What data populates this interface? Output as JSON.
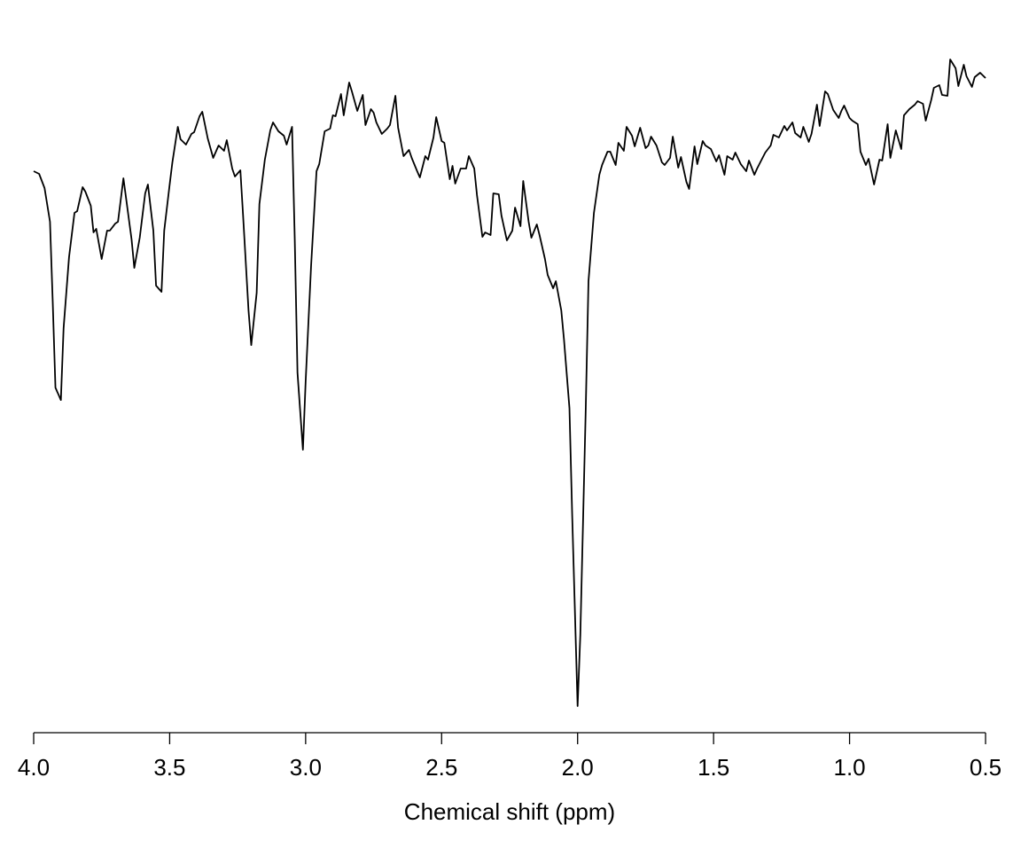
{
  "chart_data": {
    "type": "line",
    "xlabel": "Chemical shift (ppm)",
    "color": "#000000",
    "xlim": [
      4.0,
      0.5
    ],
    "ylim": [
      0,
      790
    ],
    "xticks": [
      {
        "value": 4,
        "label": "4.0"
      },
      3.5,
      {
        "value": 3,
        "label": "3.0"
      },
      2.5,
      {
        "value": 2,
        "label": "2.0"
      },
      1.5,
      {
        "value": 1,
        "label": "1.0"
      },
      0.5
    ],
    "x": [
      4.0,
      3.98,
      3.96,
      3.94,
      3.93,
      3.92,
      3.9,
      3.89,
      3.87,
      3.85,
      3.84,
      3.82,
      3.81,
      3.79,
      3.78,
      3.77,
      3.75,
      3.73,
      3.72,
      3.7,
      3.69,
      3.67,
      3.66,
      3.64,
      3.63,
      3.61,
      3.59,
      3.58,
      3.56,
      3.55,
      3.53,
      3.52,
      3.5,
      3.49,
      3.47,
      3.46,
      3.44,
      3.42,
      3.41,
      3.39,
      3.38,
      3.36,
      3.34,
      3.32,
      3.3,
      3.29,
      3.27,
      3.26,
      3.24,
      3.23,
      3.21,
      3.2,
      3.18,
      3.17,
      3.15,
      3.13,
      3.12,
      3.1,
      3.08,
      3.07,
      3.05,
      3.04,
      3.03,
      3.01,
      3.0,
      2.98,
      2.96,
      2.95,
      2.93,
      2.91,
      2.9,
      2.89,
      2.87,
      2.86,
      2.84,
      2.83,
      2.81,
      2.79,
      2.78,
      2.76,
      2.75,
      2.74,
      2.72,
      2.7,
      2.69,
      2.67,
      2.66,
      2.64,
      2.62,
      2.61,
      2.59,
      2.58,
      2.56,
      2.55,
      2.53,
      2.52,
      2.5,
      2.49,
      2.47,
      2.46,
      2.45,
      2.43,
      2.41,
      2.4,
      2.38,
      2.37,
      2.35,
      2.34,
      2.32,
      2.31,
      2.29,
      2.28,
      2.26,
      2.24,
      2.23,
      2.21,
      2.2,
      2.18,
      2.17,
      2.15,
      2.14,
      2.12,
      2.11,
      2.09,
      2.08,
      2.06,
      2.05,
      2.03,
      2.02,
      2.0,
      1.99,
      1.97,
      1.96,
      1.94,
      1.92,
      1.91,
      1.89,
      1.88,
      1.86,
      1.85,
      1.83,
      1.82,
      1.8,
      1.79,
      1.77,
      1.75,
      1.74,
      1.73,
      1.71,
      1.69,
      1.68,
      1.66,
      1.65,
      1.63,
      1.62,
      1.6,
      1.59,
      1.57,
      1.56,
      1.54,
      1.53,
      1.51,
      1.49,
      1.48,
      1.46,
      1.45,
      1.43,
      1.42,
      1.4,
      1.38,
      1.37,
      1.35,
      1.34,
      1.32,
      1.31,
      1.29,
      1.28,
      1.26,
      1.24,
      1.23,
      1.21,
      1.2,
      1.18,
      1.17,
      1.15,
      1.14,
      1.12,
      1.11,
      1.09,
      1.08,
      1.06,
      1.04,
      1.03,
      1.02,
      1.0,
      0.99,
      0.97,
      0.96,
      0.94,
      0.93,
      0.91,
      0.89,
      0.88,
      0.86,
      0.85,
      0.83,
      0.81,
      0.8,
      0.78,
      0.76,
      0.75,
      0.73,
      0.72,
      0.7,
      0.69,
      0.67,
      0.66,
      0.64,
      0.63,
      0.61,
      0.6,
      0.58,
      0.57,
      0.55,
      0.54,
      0.52,
      0.5
    ],
    "values": [
      633,
      630,
      614,
      576,
      486,
      389,
      375,
      456,
      536,
      586,
      588,
      615,
      610,
      594,
      564,
      568,
      534,
      566,
      566,
      574,
      576,
      625,
      602,
      556,
      524,
      558,
      608,
      618,
      566,
      504,
      497,
      566,
      618,
      643,
      683,
      669,
      663,
      675,
      677,
      695,
      700,
      670,
      648,
      662,
      656,
      668,
      636,
      627,
      634,
      583,
      476,
      437,
      496,
      596,
      646,
      679,
      688,
      678,
      673,
      663,
      683,
      556,
      406,
      319,
      396,
      526,
      633,
      641,
      678,
      681,
      696,
      695,
      720,
      696,
      733,
      723,
      701,
      719,
      685,
      703,
      699,
      688,
      675,
      681,
      685,
      718,
      682,
      650,
      657,
      648,
      633,
      626,
      650,
      646,
      671,
      694,
      667,
      665,
      624,
      639,
      619,
      636,
      636,
      650,
      636,
      606,
      559,
      564,
      561,
      608,
      607,
      583,
      555,
      566,
      592,
      571,
      622,
      576,
      558,
      573,
      561,
      534,
      516,
      501,
      509,
      476,
      443,
      366,
      246,
      30,
      110,
      366,
      509,
      586,
      629,
      640,
      655,
      655,
      640,
      665,
      656,
      683,
      673,
      661,
      682,
      659,
      662,
      672,
      662,
      643,
      640,
      648,
      672,
      637,
      649,
      621,
      613,
      661,
      641,
      667,
      662,
      658,
      644,
      651,
      629,
      650,
      646,
      654,
      641,
      633,
      645,
      629,
      636,
      648,
      654,
      662,
      674,
      671,
      684,
      679,
      688,
      676,
      671,
      683,
      666,
      675,
      708,
      684,
      723,
      720,
      702,
      693,
      701,
      707,
      693,
      690,
      686,
      655,
      640,
      647,
      618,
      646,
      645,
      686,
      648,
      679,
      658,
      696,
      703,
      708,
      712,
      709,
      690,
      713,
      727,
      730,
      719,
      718,
      759,
      749,
      729,
      753,
      740,
      728,
      739,
      744,
      738
    ]
  }
}
